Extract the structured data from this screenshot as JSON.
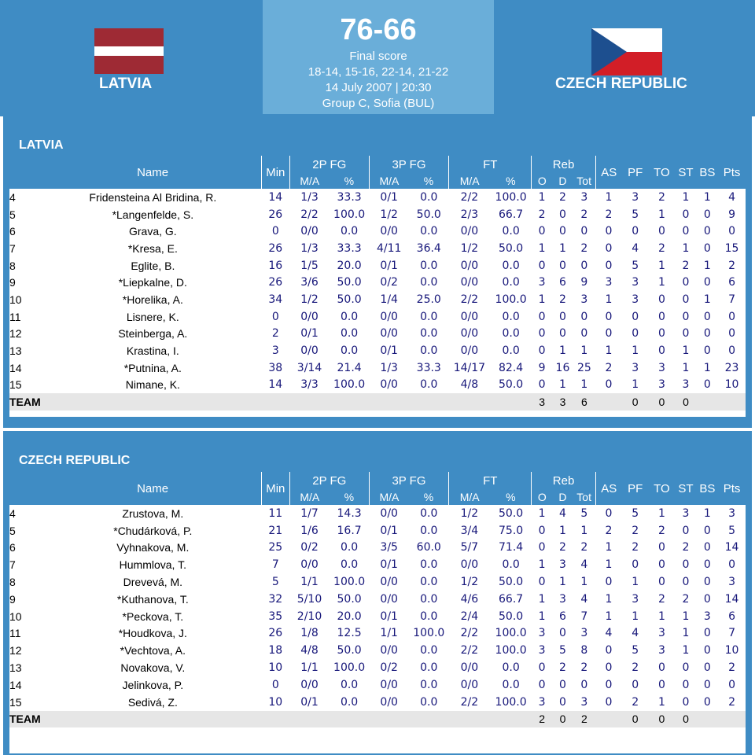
{
  "header": {
    "home_team": "LATVIA",
    "away_team": "CZECH REPUBLIC",
    "score": "76-66",
    "score_label": "Final score",
    "quarters": "18-14, 15-16, 22-14, 21-22",
    "date_time": "14 July 2007 | 20:30",
    "venue": "Group C, Sofia (BUL)"
  },
  "colors": {
    "panel_blue": "#3f8cc4",
    "score_blue": "#6aaed9",
    "stat_text": "#17177a",
    "latvia_red": "#9e2a34",
    "czech_red": "#d21e27",
    "czech_blue": "#1d4f8f"
  },
  "icons": [
    "latvia-flag-icon",
    "czech-flag-icon"
  ],
  "columns": {
    "name": "Name",
    "min": "Min",
    "fg2": "2P FG",
    "fg3": "3P FG",
    "ft": "FT",
    "reb": "Reb",
    "as": "AS",
    "pf": "PF",
    "to": "TO",
    "st": "ST",
    "bs": "BS",
    "pts": "Pts",
    "ma": "M/A",
    "pct": "%",
    "o": "O",
    "d": "D",
    "tot": "Tot"
  },
  "home": {
    "title": "LATVIA",
    "players": [
      [
        "4",
        "Fridensteina Al Bridina, R.",
        "14",
        "1/3",
        "33.3",
        "0/1",
        "0.0",
        "2/2",
        "100.0",
        "1",
        "2",
        "3",
        "1",
        "3",
        "2",
        "1",
        "1",
        "4"
      ],
      [
        "5",
        "*Langenfelde, S.",
        "26",
        "2/2",
        "100.0",
        "1/2",
        "50.0",
        "2/3",
        "66.7",
        "2",
        "0",
        "2",
        "2",
        "5",
        "1",
        "0",
        "0",
        "9"
      ],
      [
        "6",
        "Grava, G.",
        "0",
        "0/0",
        "0.0",
        "0/0",
        "0.0",
        "0/0",
        "0.0",
        "0",
        "0",
        "0",
        "0",
        "0",
        "0",
        "0",
        "0",
        "0"
      ],
      [
        "7",
        "*Kresa, E.",
        "26",
        "1/3",
        "33.3",
        "4/11",
        "36.4",
        "1/2",
        "50.0",
        "1",
        "1",
        "2",
        "0",
        "4",
        "2",
        "1",
        "0",
        "15"
      ],
      [
        "8",
        "Eglite, B.",
        "16",
        "1/5",
        "20.0",
        "0/1",
        "0.0",
        "0/0",
        "0.0",
        "0",
        "0",
        "0",
        "0",
        "5",
        "1",
        "2",
        "1",
        "2"
      ],
      [
        "9",
        "*Liepkalne, D.",
        "26",
        "3/6",
        "50.0",
        "0/2",
        "0.0",
        "0/0",
        "0.0",
        "3",
        "6",
        "9",
        "3",
        "3",
        "1",
        "0",
        "0",
        "6"
      ],
      [
        "10",
        "*Horelika, A.",
        "34",
        "1/2",
        "50.0",
        "1/4",
        "25.0",
        "2/2",
        "100.0",
        "1",
        "2",
        "3",
        "1",
        "3",
        "0",
        "0",
        "1",
        "7"
      ],
      [
        "11",
        "Lisnere, K.",
        "0",
        "0/0",
        "0.0",
        "0/0",
        "0.0",
        "0/0",
        "0.0",
        "0",
        "0",
        "0",
        "0",
        "0",
        "0",
        "0",
        "0",
        "0"
      ],
      [
        "12",
        "Steinberga, A.",
        "2",
        "0/1",
        "0.0",
        "0/0",
        "0.0",
        "0/0",
        "0.0",
        "0",
        "0",
        "0",
        "0",
        "0",
        "0",
        "0",
        "0",
        "0"
      ],
      [
        "13",
        "Krastina, I.",
        "3",
        "0/0",
        "0.0",
        "0/1",
        "0.0",
        "0/0",
        "0.0",
        "0",
        "1",
        "1",
        "1",
        "1",
        "0",
        "1",
        "0",
        "0"
      ],
      [
        "14",
        "*Putnina, A.",
        "38",
        "3/14",
        "21.4",
        "1/3",
        "33.3",
        "14/17",
        "82.4",
        "9",
        "16",
        "25",
        "2",
        "3",
        "3",
        "1",
        "1",
        "23"
      ],
      [
        "15",
        "Nimane, K.",
        "14",
        "3/3",
        "100.0",
        "0/0",
        "0.0",
        "4/8",
        "50.0",
        "0",
        "1",
        "1",
        "0",
        "1",
        "3",
        "3",
        "0",
        "10"
      ]
    ],
    "team_row": {
      "label": "TEAM",
      "o": "3",
      "d": "3",
      "tot": "6",
      "pf": "0",
      "to": "0",
      "st": "0"
    }
  },
  "away": {
    "title": "CZECH REPUBLIC",
    "players": [
      [
        "4",
        "Zrustova, M.",
        "11",
        "1/7",
        "14.3",
        "0/0",
        "0.0",
        "1/2",
        "50.0",
        "1",
        "4",
        "5",
        "0",
        "5",
        "1",
        "3",
        "1",
        "3"
      ],
      [
        "5",
        "*Chudárková, P.",
        "21",
        "1/6",
        "16.7",
        "0/1",
        "0.0",
        "3/4",
        "75.0",
        "0",
        "1",
        "1",
        "2",
        "2",
        "2",
        "0",
        "0",
        "5"
      ],
      [
        "6",
        "Vyhnakova, M.",
        "25",
        "0/2",
        "0.0",
        "3/5",
        "60.0",
        "5/7",
        "71.4",
        "0",
        "2",
        "2",
        "1",
        "2",
        "0",
        "2",
        "0",
        "14"
      ],
      [
        "7",
        "Hummlova, T.",
        "7",
        "0/0",
        "0.0",
        "0/1",
        "0.0",
        "0/0",
        "0.0",
        "1",
        "3",
        "4",
        "1",
        "0",
        "0",
        "0",
        "0",
        "0"
      ],
      [
        "8",
        "Drevevá, M.",
        "5",
        "1/1",
        "100.0",
        "0/0",
        "0.0",
        "1/2",
        "50.0",
        "0",
        "1",
        "1",
        "0",
        "1",
        "0",
        "0",
        "0",
        "3"
      ],
      [
        "9",
        "*Kuthanova, T.",
        "32",
        "5/10",
        "50.0",
        "0/0",
        "0.0",
        "4/6",
        "66.7",
        "1",
        "3",
        "4",
        "1",
        "3",
        "2",
        "2",
        "0",
        "14"
      ],
      [
        "10",
        "*Peckova, T.",
        "35",
        "2/10",
        "20.0",
        "0/1",
        "0.0",
        "2/4",
        "50.0",
        "1",
        "6",
        "7",
        "1",
        "1",
        "1",
        "1",
        "3",
        "6"
      ],
      [
        "11",
        "*Houdkova, J.",
        "26",
        "1/8",
        "12.5",
        "1/1",
        "100.0",
        "2/2",
        "100.0",
        "3",
        "0",
        "3",
        "4",
        "4",
        "3",
        "1",
        "0",
        "7"
      ],
      [
        "12",
        "*Vechtova, A.",
        "18",
        "4/8",
        "50.0",
        "0/0",
        "0.0",
        "2/2",
        "100.0",
        "3",
        "5",
        "8",
        "0",
        "5",
        "3",
        "1",
        "0",
        "10"
      ],
      [
        "13",
        "Novakova, V.",
        "10",
        "1/1",
        "100.0",
        "0/2",
        "0.0",
        "0/0",
        "0.0",
        "0",
        "2",
        "2",
        "0",
        "2",
        "0",
        "0",
        "0",
        "2"
      ],
      [
        "14",
        "Jelinkova, P.",
        "0",
        "0/0",
        "0.0",
        "0/0",
        "0.0",
        "0/0",
        "0.0",
        "0",
        "0",
        "0",
        "0",
        "0",
        "0",
        "0",
        "0",
        "0"
      ],
      [
        "15",
        "Sedivá, Z.",
        "10",
        "0/1",
        "0.0",
        "0/0",
        "0.0",
        "2/2",
        "100.0",
        "3",
        "0",
        "3",
        "0",
        "2",
        "1",
        "0",
        "0",
        "2"
      ]
    ],
    "team_row": {
      "label": "TEAM",
      "o": "2",
      "d": "0",
      "tot": "2",
      "pf": "0",
      "to": "0",
      "st": "0"
    }
  }
}
